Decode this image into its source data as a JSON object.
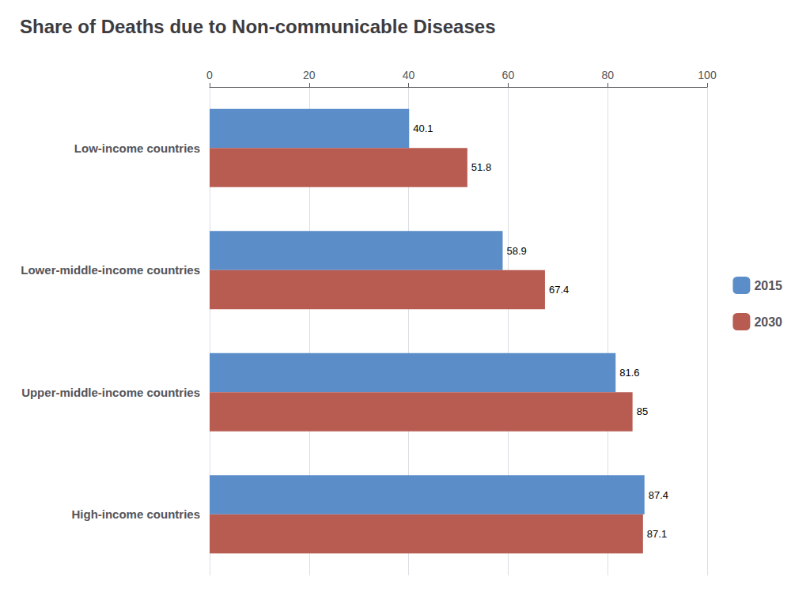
{
  "chart_data": {
    "type": "bar",
    "orientation": "horizontal",
    "title": "Share of Deaths due to Non-communicable Diseases",
    "categories": [
      "Low-income countries",
      "Lower-middle-income countries",
      "Upper-middle-income countries",
      "High-income countries"
    ],
    "series": [
      {
        "name": "2015",
        "color": "#5b8dc9",
        "values": [
          40.1,
          58.9,
          81.6,
          87.4
        ]
      },
      {
        "name": "2030",
        "color": "#b85c52",
        "values": [
          51.8,
          67.4,
          85.0,
          87.1
        ]
      }
    ],
    "xlim": [
      0,
      100
    ],
    "xticks": [
      0,
      20,
      40,
      60,
      80,
      100
    ],
    "grid": true,
    "legend": "right",
    "data_labels": true
  }
}
